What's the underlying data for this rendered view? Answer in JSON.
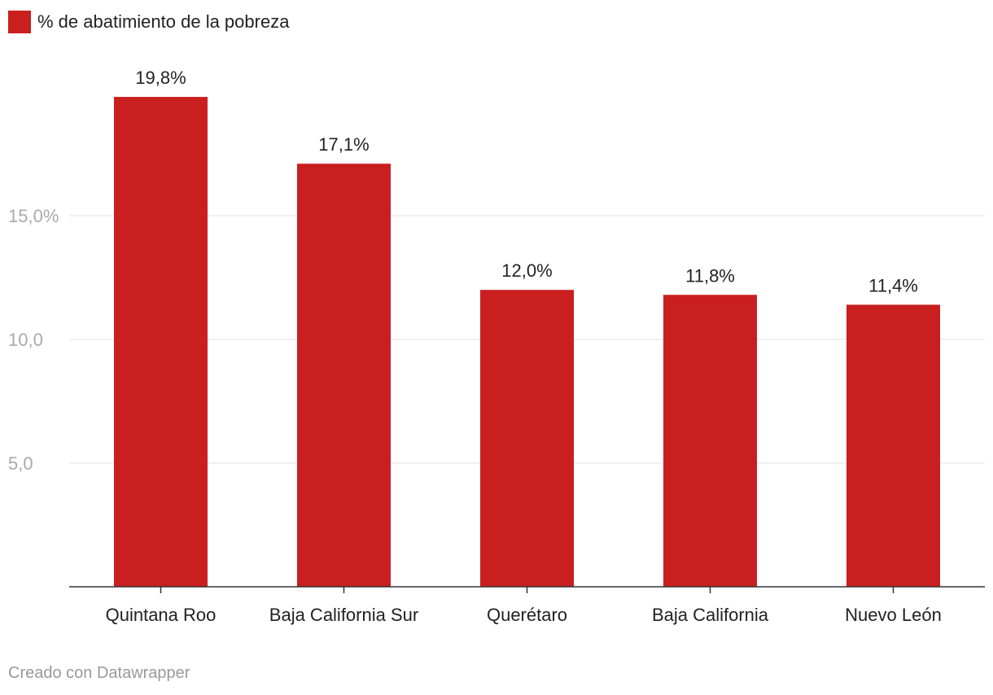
{
  "legend": {
    "label": "% de abatimiento de la pobreza",
    "color": "#c91f1f"
  },
  "footer": {
    "credit": "Creado con Datawrapper"
  },
  "chart_data": {
    "type": "bar",
    "categories": [
      "Quintana Roo",
      "Baja California Sur",
      "Querétaro",
      "Baja California",
      "Nuevo León"
    ],
    "series": [
      {
        "name": "% de abatimiento de la pobreza",
        "values": [
          19.8,
          17.1,
          12.0,
          11.8,
          11.4
        ]
      }
    ],
    "data_labels": [
      "19,8%",
      "17,1%",
      "12,0%",
      "11,8%",
      "11,4%"
    ],
    "y_ticks": [
      {
        "value": 5,
        "label": "5,0"
      },
      {
        "value": 10,
        "label": "10,0"
      },
      {
        "value": 15,
        "label": "15,0%"
      }
    ],
    "ylim": [
      0,
      20
    ],
    "grid": true,
    "legend_position": "top-left",
    "colors": {
      "bar": "#c91f1f",
      "grid": "#e0e0e0",
      "axis": "#333333",
      "tick_label": "#aaaaaa",
      "text": "#222222"
    }
  }
}
